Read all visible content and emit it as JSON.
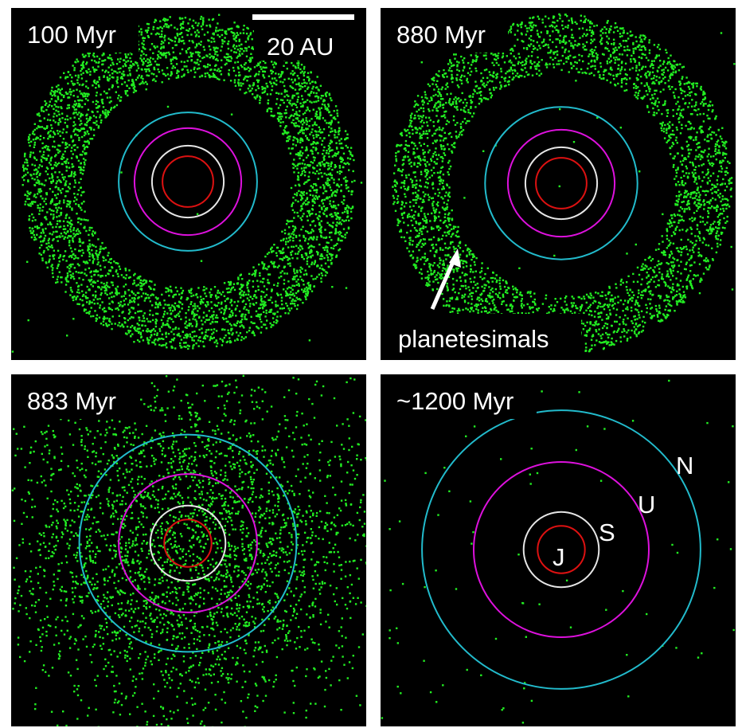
{
  "panels": [
    {
      "id": "p1",
      "time_label": "100 Myr",
      "scale_bar_label": "20 AU",
      "orbits": {
        "J": 0.145,
        "S": 0.205,
        "U": 0.305,
        "N": 0.395
      },
      "disk": {
        "inner": 0.62,
        "outer": 0.98,
        "count": 4200,
        "stray": 40
      }
    },
    {
      "id": "p2",
      "time_label": "880 Myr",
      "annotation": "planetesimals",
      "orbits": {
        "J": 0.145,
        "S": 0.205,
        "U": 0.305,
        "N": 0.435
      },
      "disk": {
        "inner": 0.66,
        "outer": 1.0,
        "count": 3600,
        "stray": 40
      }
    },
    {
      "id": "p3",
      "time_label": "883 Myr",
      "orbits": {
        "J": 0.135,
        "S": 0.215,
        "U": 0.395,
        "N": 0.62
      },
      "disk": {
        "inner": 0.0,
        "outer": 1.2,
        "count": 3400,
        "stray": 0
      }
    },
    {
      "id": "p4",
      "time_label": "~1200 Myr",
      "orbits": {
        "J": 0.135,
        "S": 0.215,
        "U": 0.5,
        "N": 0.795
      },
      "planet_labels": {
        "J": "J",
        "S": "S",
        "U": "U",
        "N": "N"
      },
      "disk": {
        "inner": 0.0,
        "outer": 1.2,
        "count": 80,
        "stray": 0
      }
    }
  ],
  "colors": {
    "background": "#000000",
    "planetesimal": "#22ee22",
    "J": "#dd1111",
    "S": "#e6e6e6",
    "U": "#dd11dd",
    "N": "#22bbcc"
  }
}
